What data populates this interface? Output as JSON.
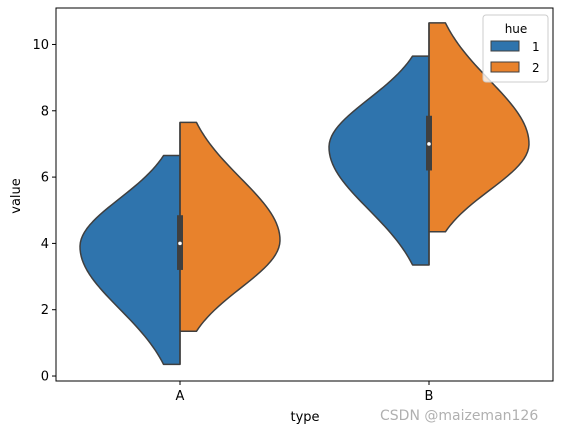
{
  "chart_data": {
    "type": "violin",
    "split": true,
    "categories": [
      "A",
      "B"
    ],
    "xlabel": "type",
    "ylabel": "value",
    "ylim": [
      -0.15,
      11.1
    ],
    "yticks": [
      0,
      2,
      4,
      6,
      8,
      10
    ],
    "legend": {
      "title": "hue",
      "placement": "top-right",
      "entries": [
        {
          "label": "1",
          "color": "#2f74ad"
        },
        {
          "label": "2",
          "color": "#e8822c"
        }
      ]
    },
    "series": [
      {
        "name": "1",
        "color": "#2f74ad",
        "side": "left",
        "violins": [
          {
            "category": "A",
            "min": 0.35,
            "max": 6.65,
            "mode": 3.9
          },
          {
            "category": "B",
            "min": 3.35,
            "max": 9.65,
            "mode": 6.9
          }
        ]
      },
      {
        "name": "2",
        "color": "#e8822c",
        "side": "right",
        "violins": [
          {
            "category": "A",
            "min": 1.35,
            "max": 7.65,
            "mode": 4.1
          },
          {
            "category": "B",
            "min": 4.35,
            "max": 10.65,
            "mode": 7.0
          }
        ]
      }
    ],
    "box": [
      {
        "category": "A",
        "q1": 3.2,
        "median": 4.0,
        "q3": 4.85,
        "whisker_low": 0.35,
        "whisker_high": 7.65
      },
      {
        "category": "B",
        "q1": 6.2,
        "median": 7.0,
        "q3": 7.85,
        "whisker_low": 3.35,
        "whisker_high": 10.65
      }
    ]
  },
  "watermark": "CSDN @maizeman126"
}
